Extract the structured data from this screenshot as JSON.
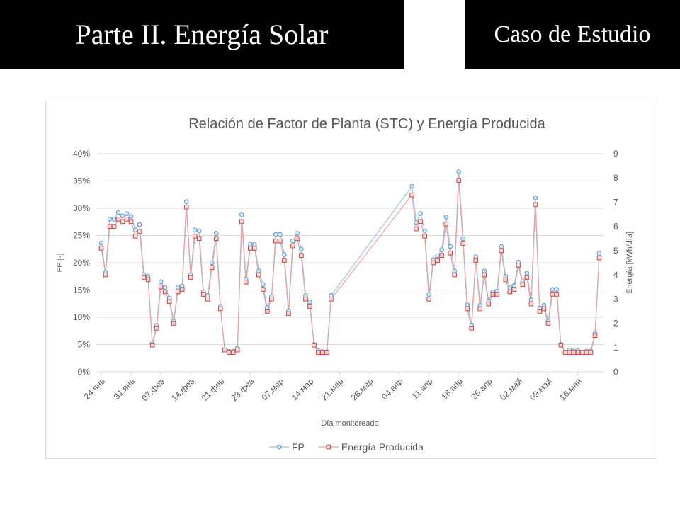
{
  "header": {
    "title": "Parte II. Energía Solar",
    "section": "Caso de Estudio"
  },
  "chart_data": {
    "type": "line",
    "title": "Relación de Factor de Planta (STC) y Energía Producida",
    "xlabel": "Día monitoreado",
    "ylabel": "FP [-]",
    "y2label": "Energía [kWh/día]",
    "x": [
      0,
      1,
      2,
      3,
      4,
      5,
      6,
      7,
      8,
      9,
      10,
      11,
      12,
      13,
      14,
      15,
      16,
      17,
      18,
      19,
      20,
      21,
      22,
      23,
      24,
      25,
      26,
      27,
      28,
      29,
      30,
      31,
      32,
      33,
      34,
      35,
      36,
      37,
      38,
      39,
      40,
      41,
      42,
      43,
      44,
      45,
      46,
      47,
      48,
      49,
      50,
      51,
      52,
      53,
      54,
      73,
      74,
      75,
      76,
      77,
      78,
      79,
      80,
      81,
      82,
      83,
      84,
      85,
      86,
      87,
      88,
      89,
      90,
      91,
      92,
      93,
      94,
      95,
      96,
      97,
      98,
      99,
      100,
      101,
      102,
      103,
      104,
      105,
      106,
      107,
      108,
      109,
      110,
      111,
      112,
      113,
      114,
      115,
      116,
      117
    ],
    "xlim": [
      -1,
      118
    ],
    "xticks": [
      {
        "value": 0,
        "label": "24.янв"
      },
      {
        "value": 7,
        "label": "31.янв"
      },
      {
        "value": 14,
        "label": "07.фев"
      },
      {
        "value": 21,
        "label": "14.фев"
      },
      {
        "value": 28,
        "label": "21.фев"
      },
      {
        "value": 35,
        "label": "28.фев"
      },
      {
        "value": 42,
        "label": "07.мар"
      },
      {
        "value": 49,
        "label": "14.мар"
      },
      {
        "value": 56,
        "label": "21.мар"
      },
      {
        "value": 63,
        "label": "28.мар"
      },
      {
        "value": 70,
        "label": "04.апр"
      },
      {
        "value": 77,
        "label": "11.апр"
      },
      {
        "value": 84,
        "label": "18.апр"
      },
      {
        "value": 91,
        "label": "25.апр"
      },
      {
        "value": 98,
        "label": "02.май"
      },
      {
        "value": 105,
        "label": "09.май"
      },
      {
        "value": 112,
        "label": "16.май"
      }
    ],
    "ylim": [
      0,
      40
    ],
    "yticks": [
      {
        "value": 0,
        "label": "0%"
      },
      {
        "value": 5,
        "label": "5%"
      },
      {
        "value": 10,
        "label": "10%"
      },
      {
        "value": 15,
        "label": "15%"
      },
      {
        "value": 20,
        "label": "20%"
      },
      {
        "value": 25,
        "label": "25%"
      },
      {
        "value": 30,
        "label": "30%"
      },
      {
        "value": 35,
        "label": "35%"
      },
      {
        "value": 40,
        "label": "40%"
      }
    ],
    "y2lim": [
      0,
      9
    ],
    "y2ticks": [
      0,
      1,
      2,
      3,
      4,
      5,
      6,
      7,
      8,
      9
    ],
    "grid": true,
    "legend": "bottom",
    "series": [
      {
        "name": "FP",
        "color": "#5b9bd5",
        "values": [
          23.6,
          18.2,
          28,
          28,
          29.2,
          28.6,
          29,
          28.5,
          26,
          27,
          17.8,
          17.5,
          5.2,
          8.5,
          16.5,
          15.5,
          13.5,
          9.3,
          15.5,
          15.7,
          31.2,
          17.8,
          26,
          25.8,
          14.7,
          14,
          20,
          25.4,
          12,
          4,
          3.8,
          3.8,
          4.3,
          28.8,
          17,
          23.4,
          23.4,
          18.5,
          16,
          11.8,
          13.8,
          25.2,
          25.2,
          21.5,
          11.2,
          24,
          25.4,
          22.5,
          14,
          12.8,
          5,
          3.9,
          3.7,
          3.7,
          14,
          34,
          27.4,
          29,
          25.8,
          14.2,
          20.6,
          21.3,
          22.4,
          28.4,
          23,
          18.5,
          36.7,
          24.4,
          12.3,
          8.6,
          21.1,
          12.2,
          18.5,
          13,
          14.6,
          14.8,
          23,
          17.5,
          15.4,
          15.8,
          20.1,
          16.5,
          18.1,
          13.2,
          31.9,
          11.7,
          12.2,
          9.3,
          15.1,
          15.1,
          5,
          3.6,
          4,
          3.8,
          3.9,
          3.6,
          3.8,
          3.8,
          7,
          21.7
        ]
      },
      {
        "name": "Energía Producida",
        "color": "#c0504d",
        "axis": "y2",
        "values": [
          5.1,
          4.0,
          6.0,
          6.0,
          6.3,
          6.2,
          6.3,
          6.2,
          5.6,
          5.8,
          3.9,
          3.8,
          1.1,
          1.8,
          3.5,
          3.3,
          2.9,
          2.0,
          3.3,
          3.4,
          6.8,
          3.9,
          5.6,
          5.5,
          3.2,
          3.0,
          4.3,
          5.5,
          2.6,
          0.9,
          0.8,
          0.8,
          0.9,
          6.2,
          3.7,
          5.1,
          5.1,
          4.0,
          3.4,
          2.5,
          3.0,
          5.4,
          5.4,
          4.6,
          2.4,
          5.2,
          5.5,
          4.8,
          3.0,
          2.7,
          1.1,
          0.8,
          0.8,
          0.8,
          3.0,
          7.3,
          5.9,
          6.2,
          5.6,
          3.0,
          4.5,
          4.6,
          4.8,
          6.1,
          4.9,
          4.0,
          7.9,
          5.3,
          2.6,
          1.8,
          4.6,
          2.6,
          4.0,
          2.8,
          3.2,
          3.2,
          5.0,
          3.8,
          3.3,
          3.4,
          4.4,
          3.6,
          3.9,
          2.8,
          6.9,
          2.5,
          2.6,
          2.0,
          3.2,
          3.2,
          1.1,
          0.8,
          0.8,
          0.8,
          0.8,
          0.8,
          0.8,
          0.8,
          1.5,
          4.7
        ]
      }
    ]
  }
}
